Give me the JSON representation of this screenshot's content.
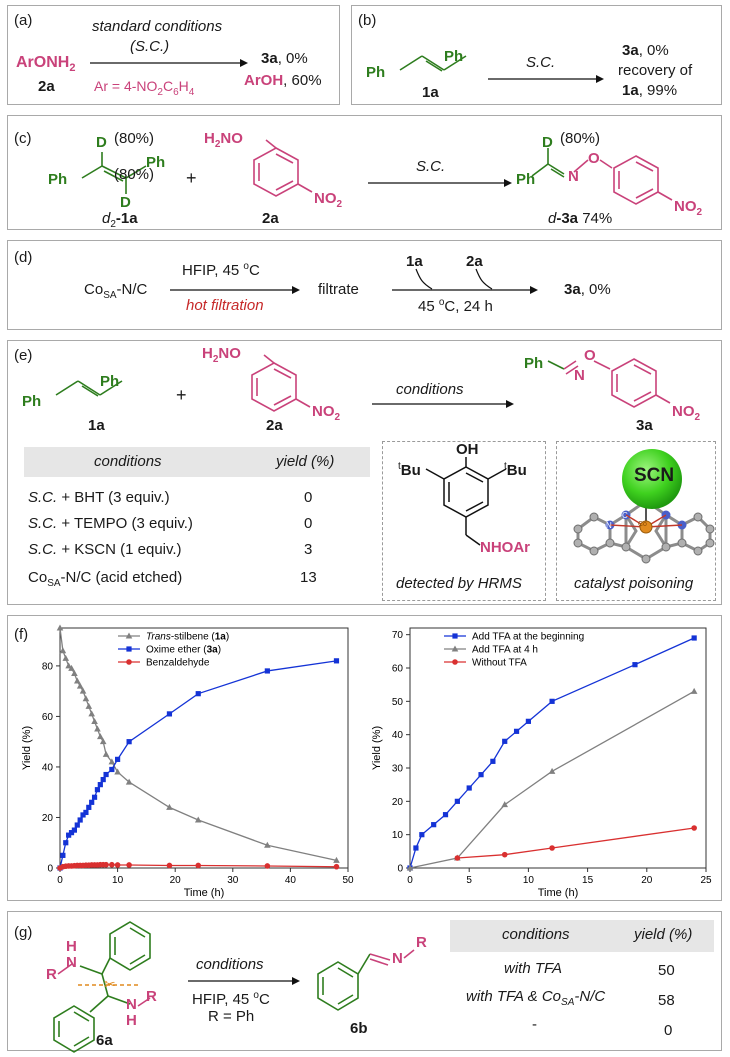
{
  "panel_a": {
    "label": "(a)",
    "reactant": "ArONH",
    "reactant_sub": "2",
    "reactant_id": "2a",
    "arrow_top": "standard conditions",
    "arrow_top2": "(S.C.)",
    "arrow_bottom": "Ar = 4-NO",
    "arrow_bottom_sub1": "2",
    "arrow_bottom_mid": "C",
    "arrow_bottom_sub2": "6",
    "arrow_bottom_end": "H",
    "arrow_bottom_sub3": "4",
    "product1_id": "3a",
    "product1_yield": ", 0%",
    "product2": "ArOH",
    "product2_yield": ", 60%"
  },
  "panel_b": {
    "label": "(b)",
    "ph_left": "Ph",
    "ph_right": "Ph",
    "reactant_id": "1a",
    "arrow_top": "S.C.",
    "result1_id": "3a",
    "result1": ", 0%",
    "result2": "recovery of",
    "result3_id": "1a",
    "result3": ", 99%"
  },
  "panel_c": {
    "label": "(c)",
    "d_top": "D",
    "d_top_pct": "(80%)",
    "ph_left": "Ph",
    "ph_right": "Ph",
    "d_bottom": "D",
    "d_bottom_pct": "(80%)",
    "reactant_id_pre": "d",
    "reactant_id_sub": "2",
    "reactant_id": "-1a",
    "plus": "+",
    "amine": "H",
    "amine_sub": "2",
    "amine_end": "NO",
    "no2": "NO",
    "no2_sub": "2",
    "reactant2_id": "2a",
    "arrow_top": "S.C.",
    "prod_d": "D",
    "prod_d_pct": "(80%)",
    "prod_ph": "Ph",
    "prod_n": "N",
    "prod_o": "O",
    "prod_no2": "NO",
    "prod_no2_sub": "2",
    "prod_id_pre": "d",
    "prod_id": "-3a",
    "prod_yield": "74%"
  },
  "panel_d": {
    "label": "(d)",
    "catalyst": "Co",
    "catalyst_sub": "SA",
    "catalyst_end": "-N/C",
    "arrow_top": "HFIP, 45 ",
    "arrow_top_sup": "o",
    "arrow_top_end": "C",
    "arrow_bottom": "hot filtration",
    "filtrate": "filtrate",
    "add1": "1a",
    "add2": "2a",
    "arrow2_bottom": "45 ",
    "arrow2_bottom_sup": "o",
    "arrow2_bottom_end": "C, 24 h",
    "product_id": "3a",
    "product_yield": ", 0%"
  },
  "panel_e": {
    "label": "(e)",
    "ph_left": "Ph",
    "ph_right": "Ph",
    "reactant_id": "1a",
    "plus": "+",
    "amine": "H",
    "amine_sub": "2",
    "amine_end": "NO",
    "no2": "NO",
    "no2_sub": "2",
    "reactant2_id": "2a",
    "arrow_top": "conditions",
    "prod_ph": "Ph",
    "prod_n": "N",
    "prod_o": "O",
    "prod_no2": "NO",
    "prod_no2_sub": "2",
    "prod_id": "3a",
    "table_head_conditions": "conditions",
    "table_head_yield": "yield (%)",
    "rows": [
      {
        "sc": "S.C.",
        "cond": " + BHT (3 equiv.)",
        "yield": "0"
      },
      {
        "sc": "S.C.",
        "cond": " + TEMPO (3 equiv.)",
        "yield": "0"
      },
      {
        "sc": "S.C.",
        "cond": " + KSCN (1 equiv.)",
        "yield": "3"
      }
    ],
    "row4_cat": "Co",
    "row4_sub": "SA",
    "row4_end": "-N/C (acid etched)",
    "row4_yield": "13",
    "bht_oh": "OH",
    "bht_tbu_sup": "t",
    "bht_tbu": "Bu",
    "bht_nhoar": "NHOAr",
    "bht_caption": "detected by HRMS",
    "scn_label": "SCN",
    "scn_co": "Co",
    "scn_n": "N",
    "scn_c": "C",
    "scn_caption": "catalyst poisoning"
  },
  "panel_f": {
    "label": "(f)"
  },
  "chart_data": [
    {
      "type": "line",
      "xlabel": "Time (h)",
      "ylabel": "Yield (%)",
      "xlim": [
        0,
        50
      ],
      "ylim": [
        0,
        95
      ],
      "xticks": [
        "0",
        "10",
        "20",
        "30",
        "40",
        "50"
      ],
      "yticks": [
        "0",
        "20",
        "40",
        "60",
        "80"
      ],
      "legend_position": "top-center",
      "series": [
        {
          "name_italic": "Trans",
          "name_rest": "-stilbene (",
          "name_bold": "1a",
          "name_close": ")",
          "color": "#808080",
          "marker": "triangle",
          "x": [
            0,
            0.5,
            1,
            1.5,
            2,
            2.5,
            3,
            3.5,
            4,
            4.5,
            5,
            5.5,
            6,
            6.5,
            7,
            7.5,
            8,
            9,
            10,
            12,
            19,
            24,
            36,
            48
          ],
          "y": [
            95,
            86,
            83,
            80,
            79,
            77,
            74,
            72,
            70,
            67,
            64,
            61,
            58,
            55,
            52,
            50,
            45,
            42,
            38,
            34,
            24,
            19,
            9,
            3
          ]
        },
        {
          "name_rest": "Oxime ether (",
          "name_bold": "3a",
          "name_close": ")",
          "color": "#1433d6",
          "marker": "square",
          "x": [
            0,
            0.5,
            1,
            1.5,
            2,
            2.5,
            3,
            3.5,
            4,
            4.5,
            5,
            5.5,
            6,
            6.5,
            7,
            7.5,
            8,
            9,
            10,
            12,
            19,
            24,
            36,
            48
          ],
          "y": [
            0,
            5,
            10,
            13,
            14,
            15,
            17,
            19,
            21,
            22,
            24,
            26,
            28,
            31,
            33,
            35,
            37,
            39,
            43,
            50,
            61,
            69,
            78,
            82
          ]
        },
        {
          "name_rest": "Benzaldehyde",
          "color": "#d93030",
          "marker": "circle",
          "x": [
            0,
            0.5,
            1,
            1.5,
            2,
            2.5,
            3,
            3.5,
            4,
            4.5,
            5,
            5.5,
            6,
            6.5,
            7,
            7.5,
            8,
            9,
            10,
            12,
            19,
            24,
            36,
            48
          ],
          "y": [
            0,
            0.5,
            0.7,
            0.8,
            0.8,
            0.9,
            1,
            1,
            1,
            1.1,
            1.1,
            1.2,
            1.2,
            1.2,
            1.3,
            1.3,
            1.3,
            1.3,
            1.2,
            1.2,
            1,
            1,
            0.8,
            0.5
          ]
        }
      ]
    },
    {
      "type": "line",
      "xlabel": "Time (h)",
      "ylabel": "Yield (%)",
      "xlim": [
        0,
        25
      ],
      "ylim": [
        0,
        72
      ],
      "xticks": [
        "0",
        "5",
        "10",
        "15",
        "20",
        "25"
      ],
      "yticks": [
        "0",
        "10",
        "20",
        "30",
        "40",
        "50",
        "60",
        "70"
      ],
      "legend_position": "top-left",
      "series": [
        {
          "name_rest": "Add TFA at the beginning",
          "color": "#1433d6",
          "marker": "square",
          "x": [
            0,
            0.5,
            1,
            2,
            3,
            4,
            5,
            6,
            7,
            8,
            9,
            10,
            12,
            19,
            24
          ],
          "y": [
            0,
            6,
            10,
            13,
            16,
            20,
            24,
            28,
            32,
            38,
            41,
            44,
            50,
            61,
            69
          ]
        },
        {
          "name_rest": "Add TFA at 4 h",
          "color": "#808080",
          "marker": "triangle",
          "x": [
            0,
            4,
            8,
            12,
            24
          ],
          "y": [
            0,
            3,
            19,
            29,
            53
          ]
        },
        {
          "name_rest": "Without TFA",
          "color": "#d93030",
          "marker": "circle",
          "x": [
            4,
            8,
            12,
            24
          ],
          "y": [
            3,
            4,
            6,
            12
          ]
        }
      ]
    }
  ],
  "panel_g": {
    "label": "(g)",
    "r1": "R",
    "nh1": "H",
    "n1": "N",
    "nh2": "H",
    "n2": "N",
    "r2": "R",
    "reactant_id": "6a",
    "arrow_top": "conditions",
    "arrow_bottom1": "HFIP, 45 ",
    "arrow_bottom1_sup": "o",
    "arrow_bottom1_end": "C",
    "arrow_bottom2": "R = Ph",
    "prod_n": "N",
    "prod_r": "R",
    "prod_id": "6b",
    "table_head_conditions": "conditions",
    "table_head_yield": "yield (%)",
    "row1_cond": "with TFA",
    "row1_yield": "50",
    "row2_cond": "with TFA & Co",
    "row2_sub": "SA",
    "row2_end": "-N/C",
    "row2_yield": "58",
    "row3_cond": "-",
    "row3_yield": "0"
  }
}
